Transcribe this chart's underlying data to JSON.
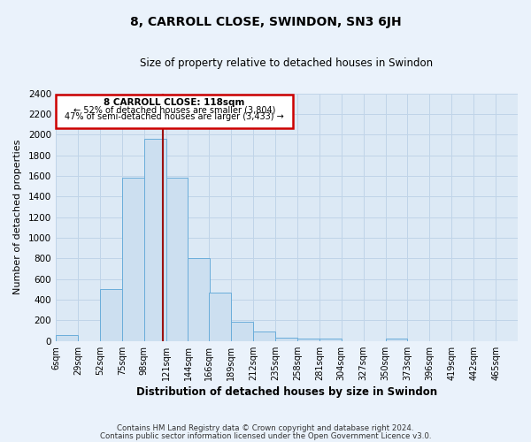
{
  "title": "8, CARROLL CLOSE, SWINDON, SN3 6JH",
  "subtitle": "Size of property relative to detached houses in Swindon",
  "xlabel": "Distribution of detached houses by size in Swindon",
  "ylabel": "Number of detached properties",
  "bar_color": "#ccdff0",
  "bar_edge_color": "#6aadda",
  "grid_color": "#c0d4e8",
  "background_color": "#dce9f5",
  "fig_background": "#eaf2fb",
  "bin_labels": [
    "6sqm",
    "29sqm",
    "52sqm",
    "75sqm",
    "98sqm",
    "121sqm",
    "144sqm",
    "166sqm",
    "189sqm",
    "212sqm",
    "235sqm",
    "258sqm",
    "281sqm",
    "304sqm",
    "327sqm",
    "350sqm",
    "373sqm",
    "396sqm",
    "419sqm",
    "442sqm",
    "465sqm"
  ],
  "bar_values": [
    55,
    0,
    500,
    1580,
    1960,
    1580,
    800,
    470,
    190,
    90,
    30,
    25,
    20,
    0,
    0,
    25,
    0,
    0,
    0,
    0,
    0
  ],
  "ylim": [
    0,
    2400
  ],
  "yticks": [
    0,
    200,
    400,
    600,
    800,
    1000,
    1200,
    1400,
    1600,
    1800,
    2000,
    2200,
    2400
  ],
  "vline_x": 118,
  "bin_edges": [
    6,
    29,
    52,
    75,
    98,
    121,
    144,
    166,
    189,
    212,
    235,
    258,
    281,
    304,
    327,
    350,
    373,
    396,
    419,
    442,
    465
  ],
  "bin_width": 23,
  "annotation_title": "8 CARROLL CLOSE: 118sqm",
  "annotation_line1": "← 52% of detached houses are smaller (3,804)",
  "annotation_line2": "47% of semi-detached houses are larger (3,433) →",
  "footer1": "Contains HM Land Registry data © Crown copyright and database right 2024.",
  "footer2": "Contains public sector information licensed under the Open Government Licence v3.0."
}
